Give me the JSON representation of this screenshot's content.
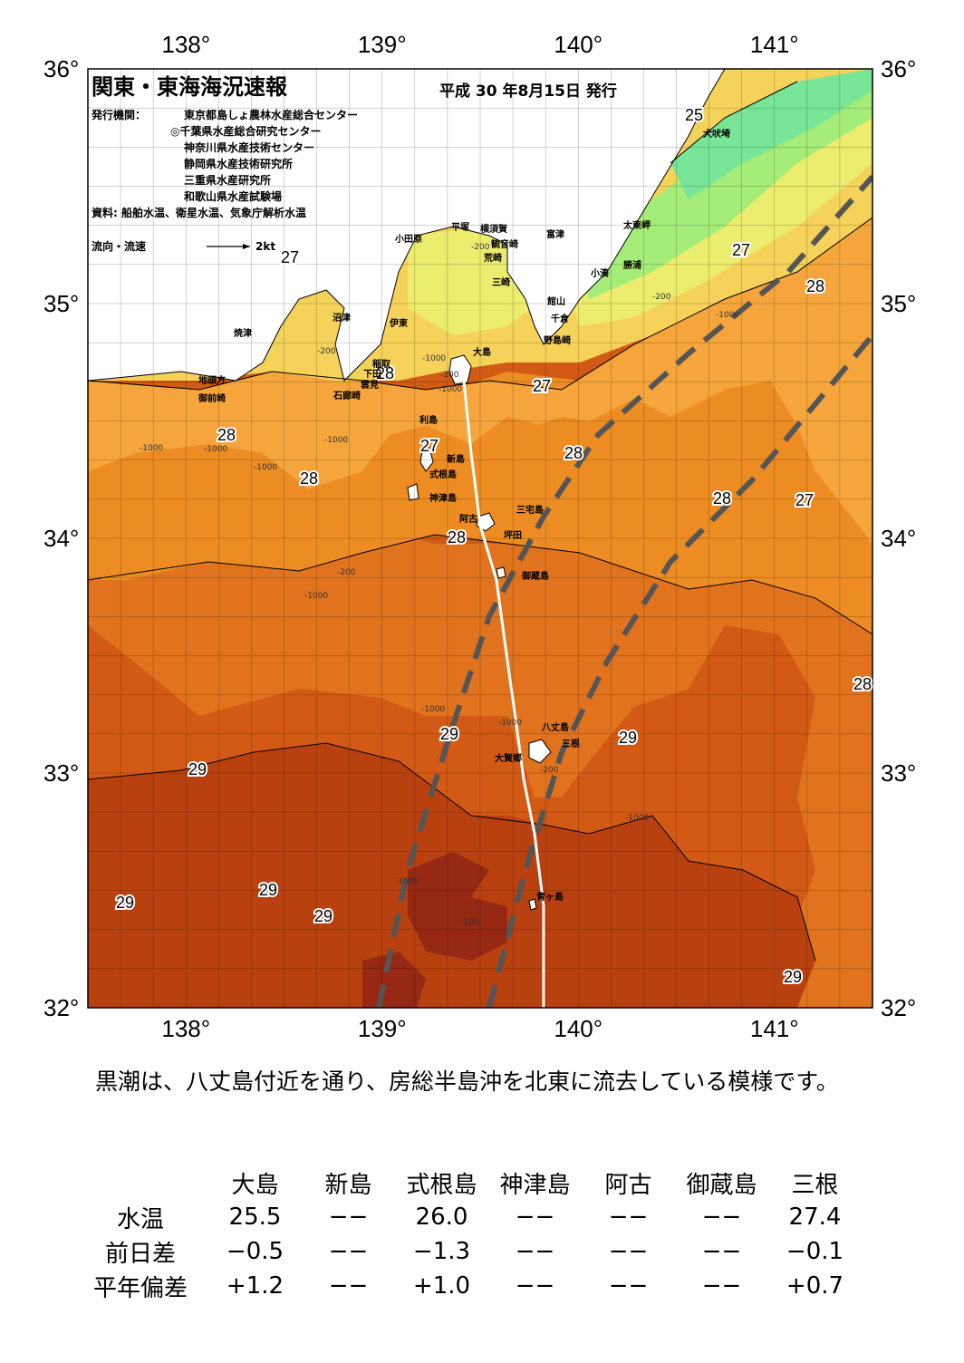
{
  "header": {
    "title": "関東・東海海況速報",
    "date": "平成 30 年8月15日 発行",
    "publisher_label": "発行機関：",
    "publishers": [
      "東京都島しょ農林水産総合センター",
      "◎千葉県水産総合研究センター",
      "神奈川県水産技術センター",
      "静岡県水産技術研究所",
      "三重県水産研究所",
      "和歌山県水産試験場"
    ],
    "source": "資料: 船舶水温、衛星水温、気象庁解析水温",
    "flow_legend": "流向・流速",
    "flow_unit": "2kt"
  },
  "axes": {
    "lon_labels": [
      "138°",
      "139°",
      "140°",
      "141°"
    ],
    "lat_labels": [
      "36°",
      "35°",
      "34°",
      "33°",
      "32°"
    ],
    "lon_range": [
      137.5,
      141.5
    ],
    "lat_range": [
      32,
      36
    ]
  },
  "colors": {
    "t24": "#78e696",
    "t25": "#a5ec78",
    "t26": "#ecec6e",
    "t27": "#f5d25a",
    "t27_5": "#f5a53c",
    "t28": "#ec8c23",
    "t28_5": "#e1731e",
    "t29": "#d25a14",
    "t29_5": "#b9410f",
    "t30": "#962814",
    "land": "#ffffff",
    "kuroshio": "#555555"
  },
  "contour_labels": [
    "25",
    "27",
    "27",
    "28",
    "27",
    "27",
    "28",
    "28",
    "28",
    "28",
    "28",
    "27",
    "28",
    "29",
    "29",
    "29",
    "29",
    "29",
    "29",
    "29",
    "28"
  ],
  "depth_labels": [
    "-200",
    "-200",
    "-1000",
    "-200",
    "-1000",
    "-200",
    "-1000",
    "-1000",
    "-1000",
    "-1000",
    "-1000",
    "-200",
    "-1000",
    "-1000",
    "-1000",
    "-200",
    "-1000",
    "-1000",
    "-200"
  ],
  "places": [
    "犬吠埼",
    "太東岬",
    "勝浦",
    "小湊",
    "富津",
    "横須賀",
    "観音崎",
    "平塚",
    "小田原",
    "荒崎",
    "三崎",
    "館山",
    "千倉",
    "野島崎",
    "沼津",
    "伊東",
    "焼津",
    "稲取",
    "下田",
    "雲見",
    "石廊崎",
    "地頭方",
    "御前崎",
    "大島",
    "利島",
    "新島",
    "式根島",
    "神津島",
    "三宅島",
    "阿古",
    "坪田",
    "御蔵島",
    "八丈島",
    "三根",
    "大賀郷",
    "青ヶ島"
  ],
  "summary": "黒潮は、八丈島付近を通り、房総半島沖を北東に流去している模様です。",
  "table": {
    "columns": [
      "大島",
      "新島",
      "式根島",
      "神津島",
      "阿古",
      "御蔵島",
      "三根"
    ],
    "rows": [
      {
        "label": "水温",
        "values": [
          "25.5",
          "−−",
          "26.0",
          "−−",
          "−−",
          "−−",
          "27.4"
        ]
      },
      {
        "label": "前日差",
        "values": [
          "−0.5",
          "−−",
          "−1.3",
          "−−",
          "−−",
          "−−",
          "−0.1"
        ]
      },
      {
        "label": "平年偏差",
        "values": [
          "+1.2",
          "−−",
          "+1.0",
          "−−",
          "−−",
          "−−",
          "+0.7"
        ]
      }
    ]
  }
}
